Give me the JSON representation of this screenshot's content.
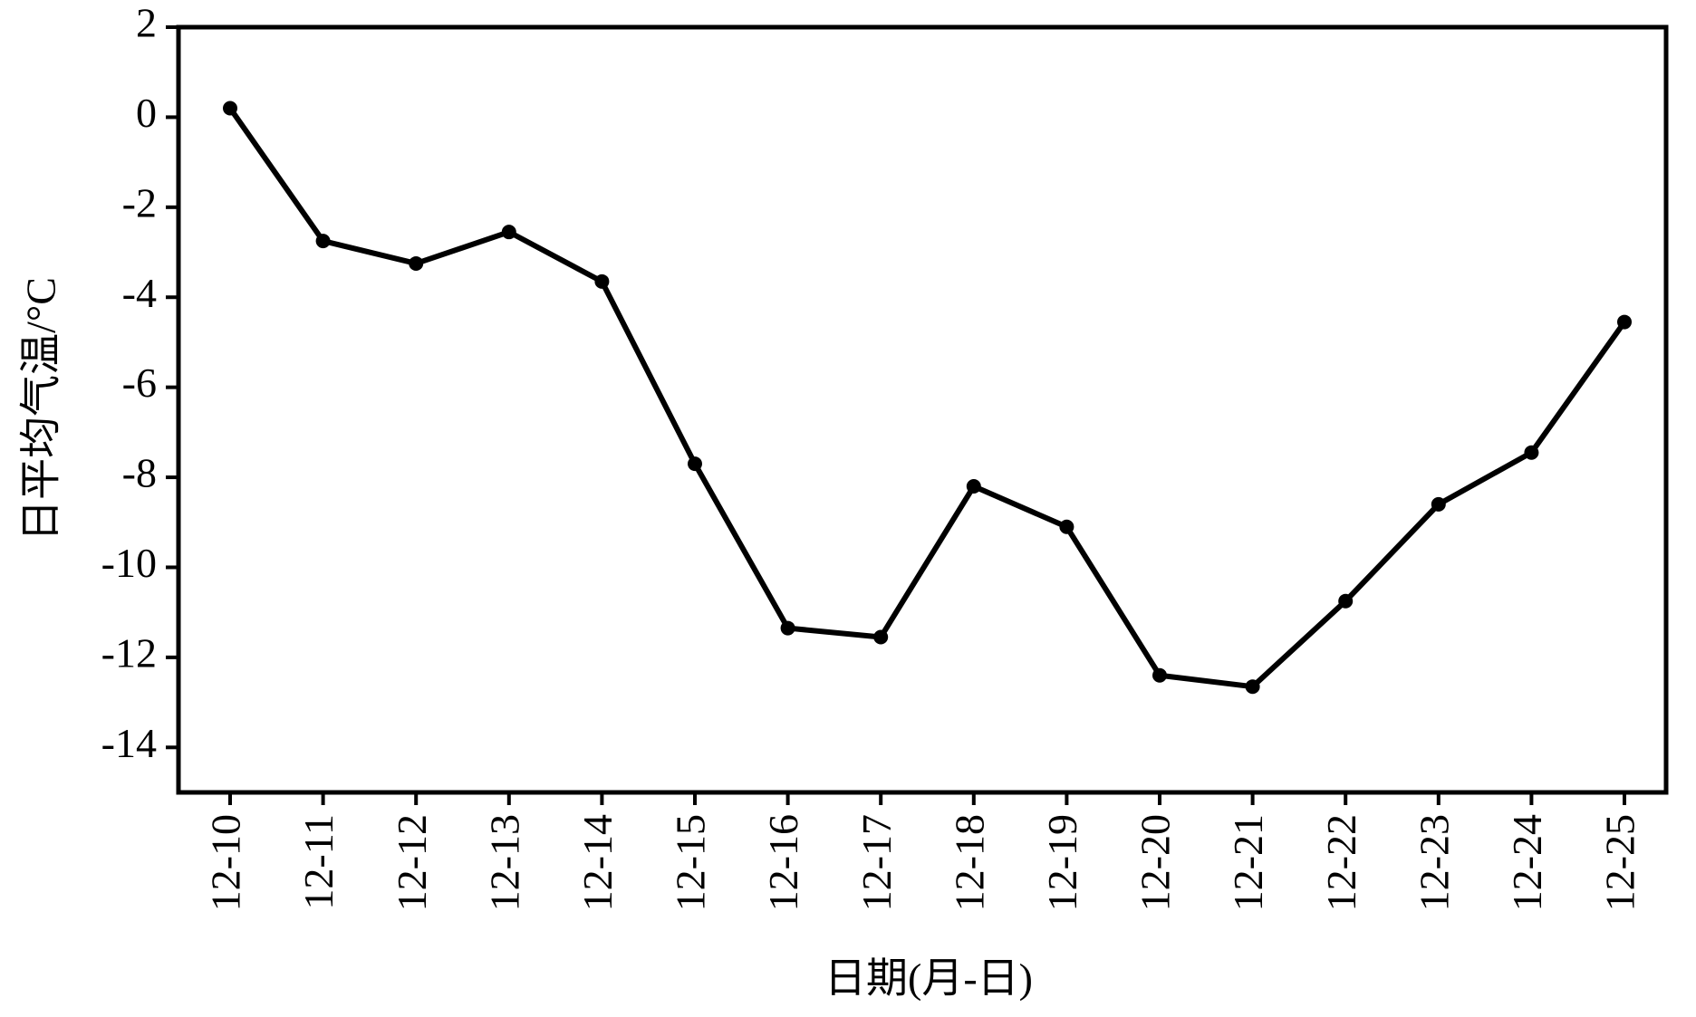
{
  "chart_data": {
    "type": "line",
    "xlabel": "日期(月-日)",
    "ylabel": "日平均气温/°C",
    "categories": [
      "12-10",
      "12-11",
      "12-12",
      "12-13",
      "12-14",
      "12-15",
      "12-16",
      "12-17",
      "12-18",
      "12-19",
      "12-20",
      "12-21",
      "12-22",
      "12-23",
      "12-24",
      "12-25"
    ],
    "values": [
      0.2,
      -2.75,
      -3.25,
      -2.55,
      -3.65,
      -7.7,
      -11.35,
      -11.55,
      -8.2,
      -9.1,
      -12.4,
      -12.65,
      -10.75,
      -8.6,
      -7.45,
      -4.55
    ],
    "color": "#000000",
    "ylim": [
      -15,
      2
    ],
    "yticks": [
      2,
      0,
      -2,
      -4,
      -6,
      -8,
      -10,
      -12,
      -14
    ],
    "grid": false
  }
}
